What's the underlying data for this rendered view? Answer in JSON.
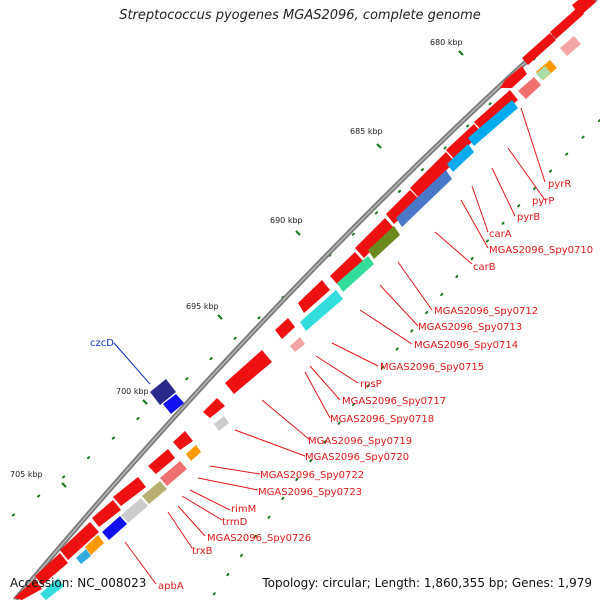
{
  "title": "Streptococcus pyogenes MGAS2096, complete genome",
  "footer": {
    "accession": "Accession: NC_008023",
    "stats": "Topology: circular; Length: 1,860,355 bp; Genes: 1,979"
  },
  "ruler_ticks": [
    "680 kbp",
    "685 kbp",
    "690 kbp",
    "695 kbp",
    "700 kbp",
    "705 kbp"
  ],
  "gene_labels": [
    {
      "text": "pyrR",
      "color": "#e01818"
    },
    {
      "text": "pyrP",
      "color": "#e01818"
    },
    {
      "text": "pyrB",
      "color": "#e01818"
    },
    {
      "text": "carA",
      "color": "#e01818"
    },
    {
      "text": "MGAS2096_Spy0710",
      "color": "#e01818"
    },
    {
      "text": "carB",
      "color": "#e01818"
    },
    {
      "text": "MGAS2096_Spy0712",
      "color": "#e01818"
    },
    {
      "text": "MGAS2096_Spy0713",
      "color": "#e01818"
    },
    {
      "text": "MGAS2096_Spy0714",
      "color": "#e01818"
    },
    {
      "text": "MGAS2096_Spy0715",
      "color": "#e01818"
    },
    {
      "text": "rpsP",
      "color": "#e01818"
    },
    {
      "text": "MGAS2096_Spy0717",
      "color": "#e01818"
    },
    {
      "text": "MGAS2096_Spy0718",
      "color": "#e01818"
    },
    {
      "text": "MGAS2096_Spy0719",
      "color": "#e01818"
    },
    {
      "text": "MGAS2096_Spy0720",
      "color": "#e01818"
    },
    {
      "text": "MGAS2096_Spy0722",
      "color": "#e01818"
    },
    {
      "text": "MGAS2096_Spy0723",
      "color": "#e01818"
    },
    {
      "text": "rimM",
      "color": "#e01818"
    },
    {
      "text": "trmD",
      "color": "#e01818"
    },
    {
      "text": "MGAS2096_Spy0726",
      "color": "#e01818"
    },
    {
      "text": "trxB",
      "color": "#e01818"
    },
    {
      "text": "apbA",
      "color": "#e01818"
    },
    {
      "text": "czcD",
      "color": "#1030c8"
    }
  ],
  "colors": {
    "backbone": "#8c8c8c",
    "forward_gene": "#ee1111",
    "reverse_gene": "#1010cc",
    "tick": "#1a7a1a"
  }
}
